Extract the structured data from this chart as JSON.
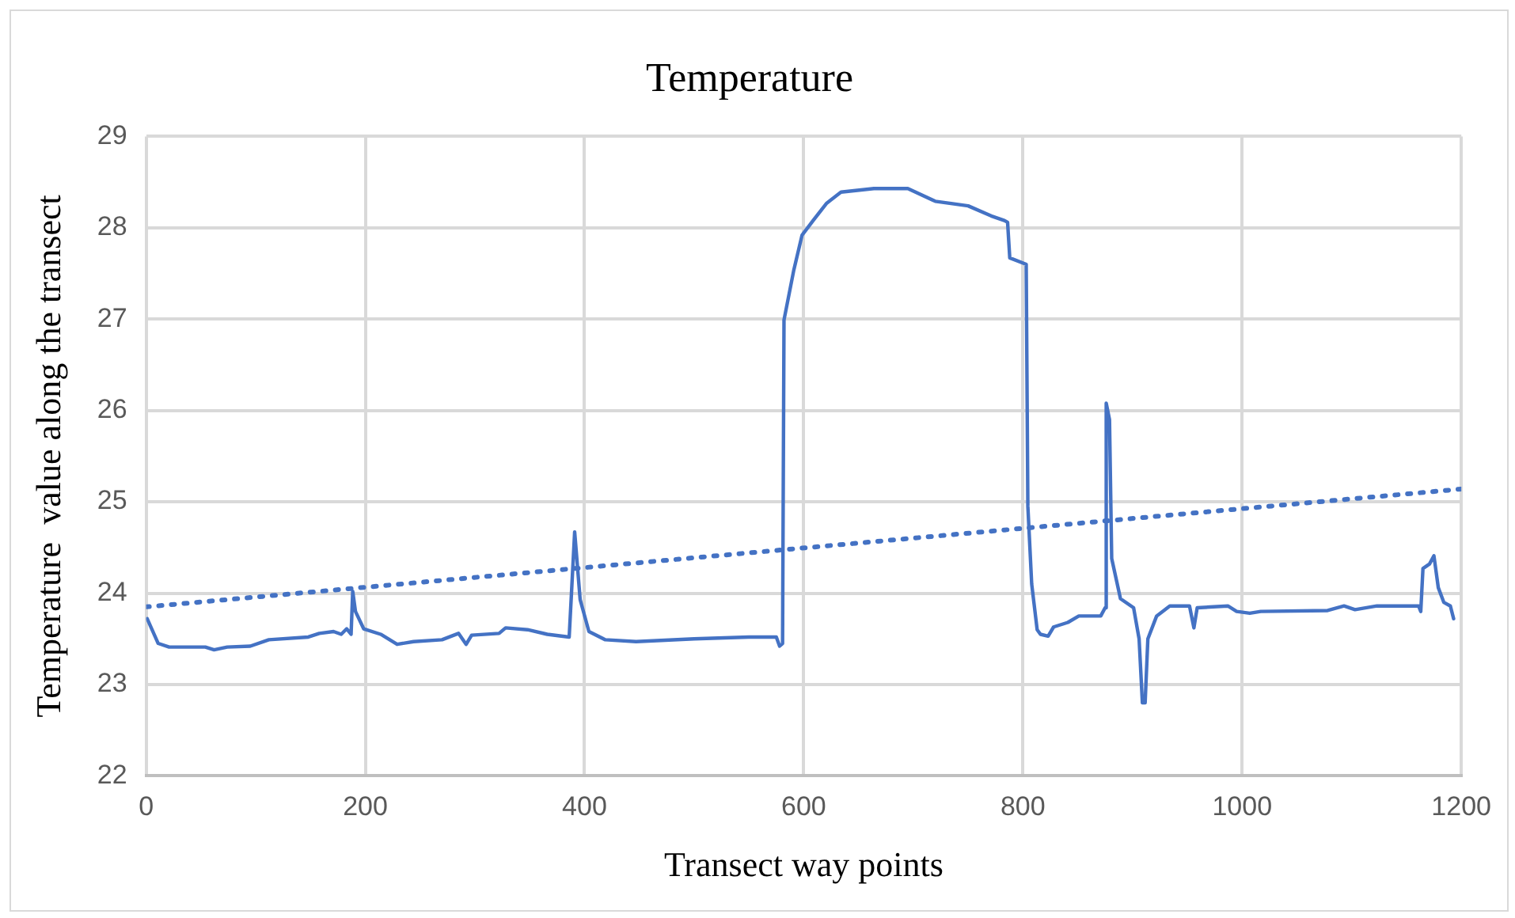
{
  "chart_data": {
    "type": "line",
    "title": "Temperature",
    "xlabel": "Transect way points",
    "ylabel": "Temperature  value along the transect",
    "xlim": [
      0,
      1200
    ],
    "xticks": [
      0,
      200,
      400,
      600,
      800,
      1000,
      1200
    ],
    "ylim": [
      22,
      29
    ],
    "yticks": [
      22,
      23,
      24,
      25,
      26,
      27,
      28,
      29
    ],
    "grid": true,
    "legend": false,
    "marker": "none",
    "series": [
      {
        "color": "#4472c4",
        "line_style": "solid",
        "x": [
          1,
          11,
          21,
          54,
          62,
          74,
          95,
          112,
          148,
          158,
          171,
          178,
          183,
          187,
          188.5,
          191,
          198.5,
          214,
          229,
          244,
          270,
          285,
          292,
          297,
          322,
          328,
          348,
          366,
          386,
          391,
          396,
          404,
          419,
          447,
          500,
          550,
          575,
          578,
          580.7,
          582,
          591,
          598.5,
          608.6,
          621,
          634,
          664,
          695,
          720,
          750,
          771,
          783,
          786,
          788,
          803,
          804.5,
          808,
          813,
          816,
          823,
          828,
          841,
          851,
          871,
          875,
          876,
          879,
          881,
          889,
          901,
          906,
          909,
          911.5,
          914,
          922,
          934,
          952,
          956,
          959,
          987,
          995,
          1007,
          1017,
          1078,
          1093,
          1103,
          1123,
          1161,
          1163,
          1165,
          1171,
          1175,
          1179,
          1184,
          1190,
          1193
        ],
        "values": [
          23.72,
          23.45,
          23.41,
          23.41,
          23.38,
          23.41,
          23.42,
          23.49,
          23.52,
          23.56,
          23.58,
          23.55,
          23.61,
          23.55,
          24.02,
          23.8,
          23.61,
          23.55,
          23.44,
          23.47,
          23.49,
          23.56,
          23.44,
          23.54,
          23.56,
          23.62,
          23.6,
          23.55,
          23.52,
          24.67,
          23.93,
          23.58,
          23.49,
          23.47,
          23.5,
          23.52,
          23.52,
          23.42,
          23.45,
          26.99,
          27.54,
          27.92,
          28.08,
          28.27,
          28.39,
          28.43,
          28.43,
          28.29,
          28.24,
          28.13,
          28.08,
          28.06,
          27.67,
          27.6,
          24.95,
          24.1,
          23.6,
          23.55,
          23.53,
          23.63,
          23.68,
          23.75,
          23.75,
          23.84,
          26.08,
          25.9,
          24.38,
          23.94,
          23.84,
          23.5,
          22.8,
          22.8,
          23.5,
          23.75,
          23.86,
          23.86,
          23.62,
          23.84,
          23.86,
          23.8,
          23.78,
          23.8,
          23.81,
          23.86,
          23.82,
          23.86,
          23.86,
          23.8,
          24.27,
          24.32,
          24.41,
          24.06,
          23.9,
          23.86,
          23.72
        ]
      },
      {
        "color": "#4472c4",
        "line_style": "dotted",
        "x": [
          0,
          1200
        ],
        "values": [
          23.85,
          25.14
        ]
      }
    ]
  }
}
